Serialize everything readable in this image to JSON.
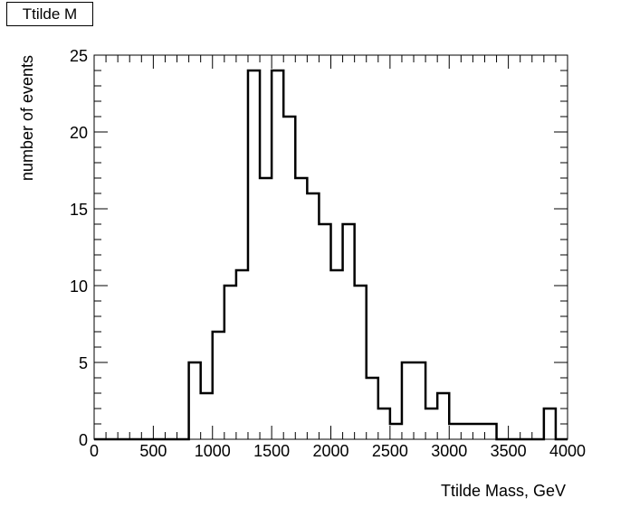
{
  "chart_data": {
    "type": "bar",
    "histogram": true,
    "title": "Ttilde M",
    "xlabel": "Ttilde Mass, GeV",
    "ylabel": "number of events",
    "xlim": [
      0,
      4000
    ],
    "ylim": [
      0,
      25
    ],
    "bin_width": 100,
    "x_ticks": [
      0,
      500,
      1000,
      1500,
      2000,
      2500,
      3000,
      3500,
      4000
    ],
    "y_ticks": [
      0,
      5,
      10,
      15,
      20,
      25
    ],
    "values": [
      0,
      0,
      0,
      0,
      0,
      0,
      0,
      0,
      5,
      3,
      7,
      10,
      11,
      24,
      17,
      24,
      21,
      17,
      16,
      14,
      11,
      14,
      10,
      4,
      2,
      1,
      5,
      5,
      2,
      3,
      1,
      1,
      1,
      1,
      0,
      0,
      0,
      0,
      2,
      0
    ],
    "grid": false,
    "line_color": "#000000"
  }
}
